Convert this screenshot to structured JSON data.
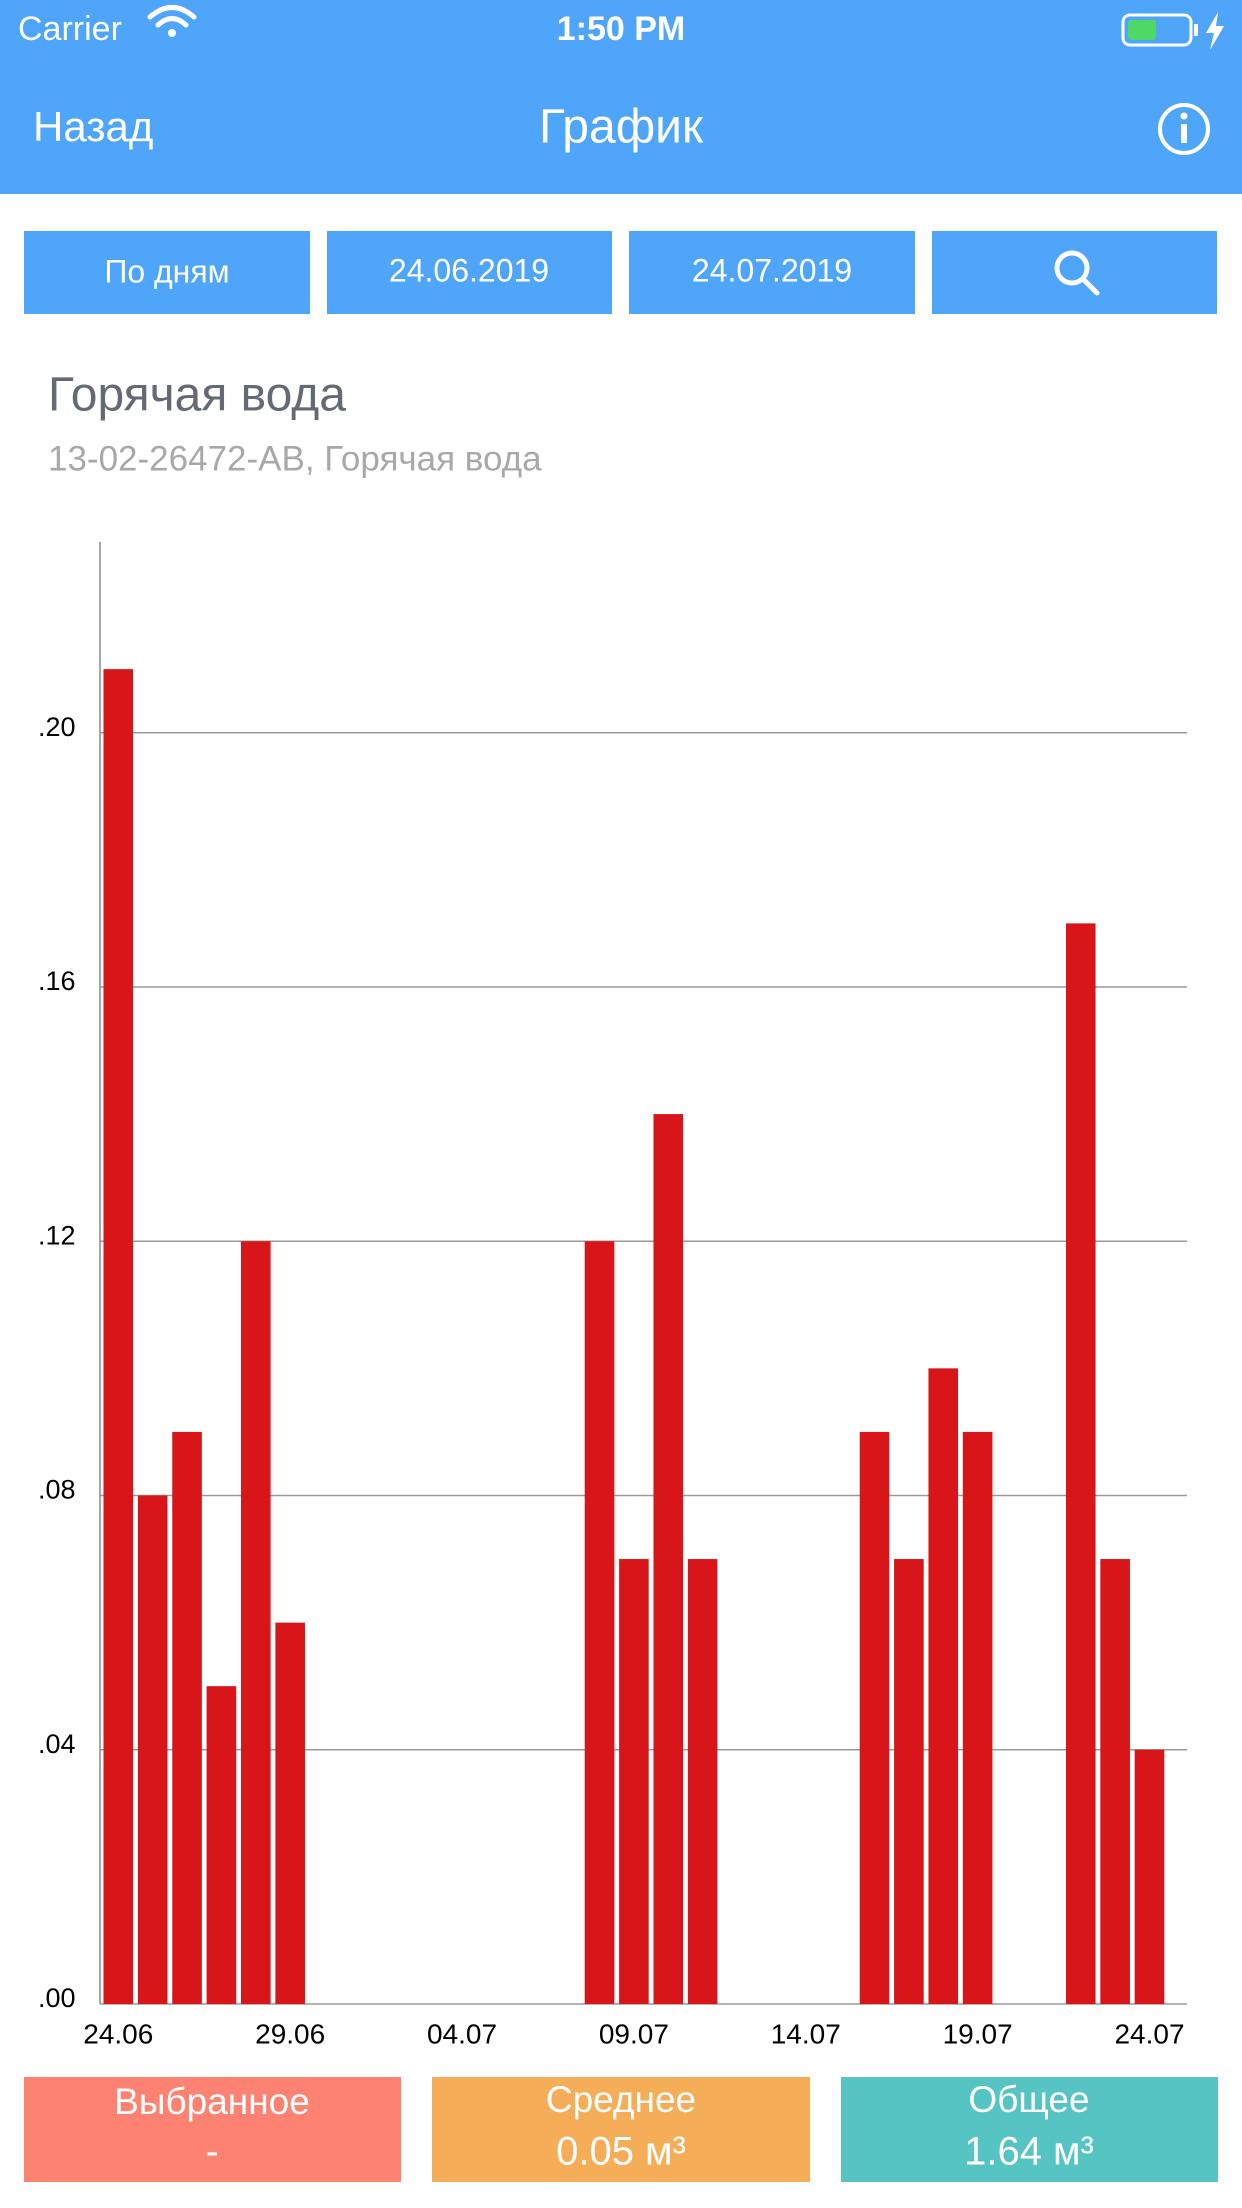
{
  "status": {
    "carrier": "Carrier",
    "time": "1:50 PM"
  },
  "nav": {
    "back": "Назад",
    "title": "График"
  },
  "filters": {
    "period": "По дням",
    "from": "24.06.2019",
    "to": "24.07.2019"
  },
  "chart_data": {
    "type": "bar",
    "title": "Горячая вода",
    "subtitle": "13-02-26472-AB, Горячая вода",
    "categories": [
      "24.06",
      null,
      null,
      null,
      null,
      "29.06",
      null,
      null,
      null,
      null,
      "04.07",
      null,
      null,
      null,
      null,
      "09.07",
      null,
      null,
      null,
      null,
      "14.07",
      null,
      null,
      null,
      null,
      "19.07",
      null,
      null,
      null,
      null,
      "24.07"
    ],
    "values": [
      0.21,
      0.08,
      0.09,
      0.05,
      0.12,
      0.06,
      0,
      0,
      0,
      0,
      0,
      0,
      0,
      0,
      0.12,
      0.07,
      0.14,
      0.07,
      0,
      0,
      0,
      0,
      0.09,
      0.07,
      0.1,
      0.09,
      0,
      0,
      0.17,
      0.07,
      0.04
    ],
    "color": "#d81619",
    "ylim": [
      0,
      0.23
    ],
    "yticks": [
      {
        "value": 0,
        "label": ".00"
      },
      {
        "value": 0.04,
        "label": ".04"
      },
      {
        "value": 0.08,
        "label": ".08"
      },
      {
        "value": 0.12,
        "label": ".12"
      },
      {
        "value": 0.16,
        "label": ".16"
      },
      {
        "value": 0.2,
        "label": ".20"
      }
    ],
    "grid": true
  },
  "summary": [
    {
      "label": "Выбранное",
      "value": "-"
    },
    {
      "label": "Среднее",
      "value": "0.05 м³"
    },
    {
      "label": "Общее",
      "value": "1.64 м³"
    }
  ]
}
